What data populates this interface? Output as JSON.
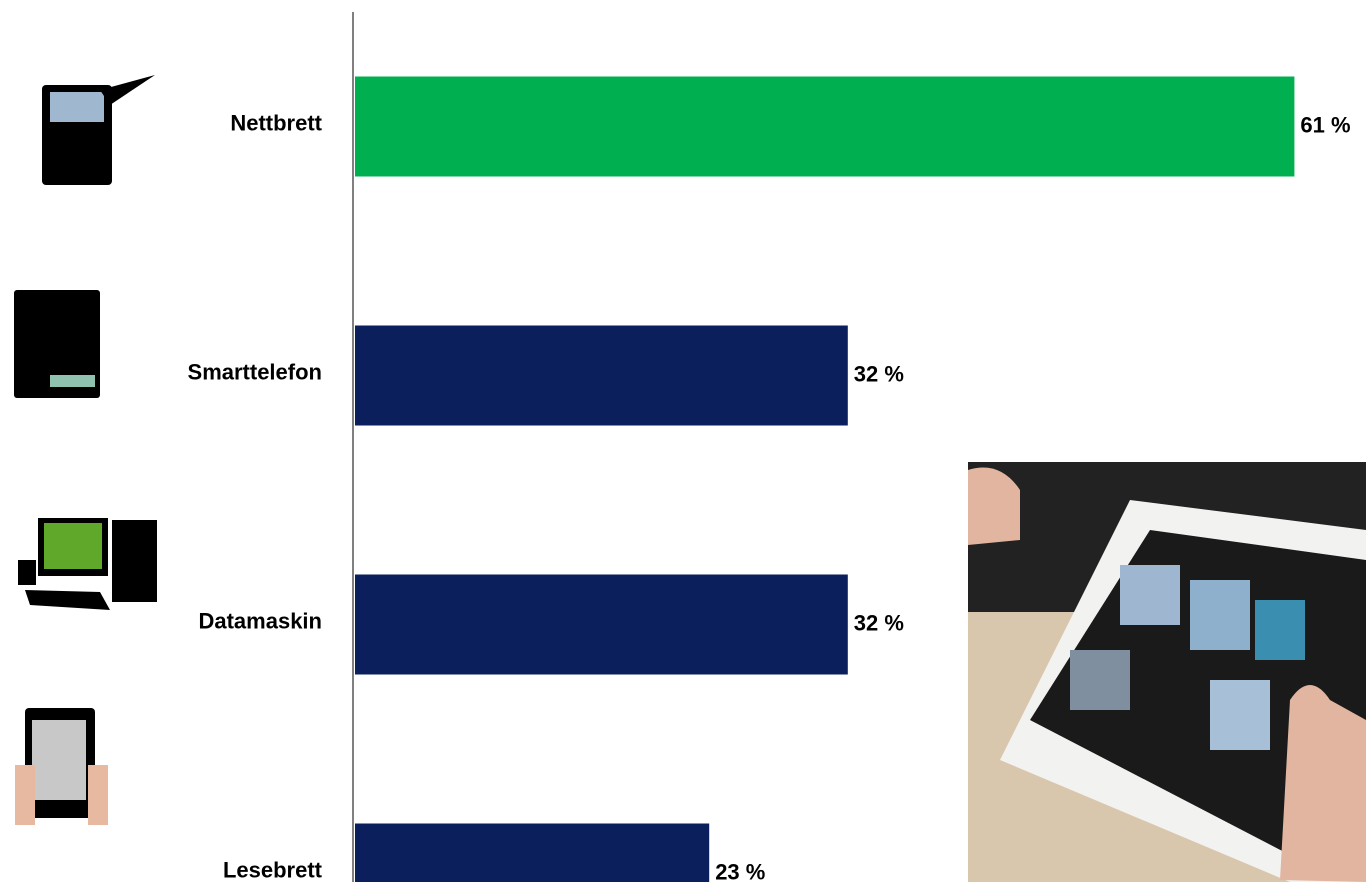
{
  "chart_data": {
    "type": "hbar",
    "categories": [
      "Nettbrett",
      "Smarttelefon",
      "Datamaskin",
      "Lesebrett"
    ],
    "values": [
      61,
      32,
      32,
      23
    ],
    "value_labels": [
      "61 %",
      "32 %",
      "32 %",
      "23 %"
    ],
    "colors": [
      "#00b050",
      "#0a1f5c",
      "#0a1f5c",
      "#0a1f5c"
    ]
  }
}
